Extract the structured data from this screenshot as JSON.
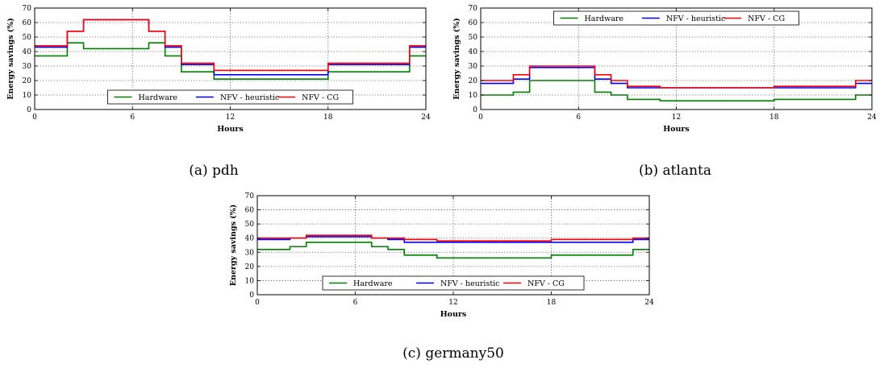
{
  "series_colors": {
    "Hardware": "#008000",
    "NFV - heuristic": "#0000ff",
    "NFV - CG": "#ff0000"
  },
  "chart_data": [
    {
      "type": "line",
      "step": "post",
      "caption": "(a) pdh",
      "xlabel": "Hours",
      "ylabel": "Energy savings (%)",
      "xlim": [
        0,
        24
      ],
      "ylim": [
        0,
        70
      ],
      "xticks": [
        0,
        6,
        12,
        18,
        24
      ],
      "yticks": [
        0,
        10,
        20,
        30,
        40,
        50,
        60,
        70
      ],
      "grid": true,
      "legend_position": "lower-center",
      "x": [
        0,
        2,
        3,
        7,
        8,
        9,
        11,
        18,
        23,
        24
      ],
      "series": [
        {
          "name": "Hardware",
          "color": "#008000",
          "values": [
            37,
            46,
            42,
            46,
            37,
            26,
            21,
            26,
            37,
            37
          ]
        },
        {
          "name": "NFV - heuristic",
          "color": "#0000ff",
          "values": [
            43,
            54,
            62,
            54,
            43,
            31,
            24,
            31,
            43,
            43
          ]
        },
        {
          "name": "NFV - CG",
          "color": "#ff0000",
          "values": [
            44,
            54,
            62,
            54,
            44,
            32,
            27,
            32,
            44,
            44
          ]
        }
      ]
    },
    {
      "type": "line",
      "step": "post",
      "caption": "(b) atlanta",
      "xlabel": "Hours",
      "ylabel": "Energy savings (%)",
      "xlim": [
        0,
        24
      ],
      "ylim": [
        0,
        70
      ],
      "xticks": [
        0,
        6,
        12,
        18,
        24
      ],
      "yticks": [
        0,
        10,
        20,
        30,
        40,
        50,
        60,
        70
      ],
      "grid": true,
      "legend_position": "upper-center",
      "x": [
        0,
        2,
        3,
        7,
        8,
        9,
        11,
        18,
        23,
        24
      ],
      "series": [
        {
          "name": "Hardware",
          "color": "#008000",
          "values": [
            10,
            12,
            20,
            12,
            10,
            7,
            6,
            7,
            10,
            10
          ]
        },
        {
          "name": "NFV - heuristic",
          "color": "#0000ff",
          "values": [
            18,
            21,
            29,
            21,
            18,
            15,
            15,
            15,
            18,
            18
          ]
        },
        {
          "name": "NFV - CG",
          "color": "#ff0000",
          "values": [
            20,
            24,
            30,
            24,
            20,
            16,
            15,
            16,
            20,
            20
          ]
        }
      ]
    },
    {
      "type": "line",
      "step": "post",
      "caption": "(c) germany50",
      "xlabel": "Hours",
      "ylabel": "Energy savings (%)",
      "xlim": [
        0,
        24
      ],
      "ylim": [
        0,
        70
      ],
      "xticks": [
        0,
        6,
        12,
        18,
        24
      ],
      "yticks": [
        0,
        10,
        20,
        30,
        40,
        50,
        60,
        70
      ],
      "grid": true,
      "legend_position": "lower-center",
      "x": [
        0,
        2,
        3,
        7,
        8,
        9,
        11,
        18,
        23,
        24
      ],
      "series": [
        {
          "name": "Hardware",
          "color": "#008000",
          "values": [
            32,
            34,
            37,
            34,
            32,
            28,
            26,
            28,
            32,
            32
          ]
        },
        {
          "name": "NFV - heuristic",
          "color": "#0000ff",
          "values": [
            39,
            40,
            41,
            40,
            39,
            37,
            37,
            37,
            39,
            39
          ]
        },
        {
          "name": "NFV - CG",
          "color": "#ff0000",
          "values": [
            40,
            40,
            42,
            40,
            40,
            39,
            38,
            39,
            40,
            40
          ]
        }
      ]
    }
  ]
}
